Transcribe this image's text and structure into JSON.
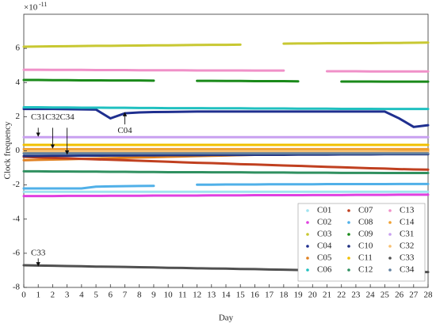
{
  "chart_data": {
    "type": "line",
    "x_label": "Day",
    "y_label": "Clock frequency",
    "y_multiplier": {
      "base": "×10",
      "exponent": "-11"
    },
    "xlim": [
      0,
      28
    ],
    "xticks": [
      0,
      1,
      2,
      3,
      4,
      5,
      6,
      7,
      8,
      9,
      10,
      11,
      12,
      13,
      14,
      15,
      16,
      17,
      18,
      19,
      20,
      21,
      22,
      23,
      24,
      25,
      26,
      27,
      28
    ],
    "ylim": [
      -8,
      8
    ],
    "yticks": [
      -8,
      -6,
      -4,
      -2,
      0,
      2,
      4,
      6
    ],
    "legend": "lower right",
    "x": [
      0,
      1,
      2,
      3,
      4,
      5,
      6,
      7,
      8,
      9,
      10,
      11,
      12,
      13,
      14,
      15,
      16,
      17,
      18,
      19,
      20,
      21,
      22,
      23,
      24,
      25,
      26,
      27,
      28
    ],
    "series": [
      {
        "name": "C01",
        "color": "#9fe3f0",
        "values": [
          -2.4,
          -2.4,
          -2.4,
          -2.4,
          -2.4,
          -2.4,
          -2.4,
          -2.4,
          -2.4,
          -2.4,
          -2.4,
          -2.4,
          -2.4,
          -2.4,
          -2.4,
          -2.4,
          -2.4,
          -2.4,
          -2.4,
          -2.4,
          -2.4,
          -2.4,
          -2.4,
          -2.4,
          -2.4,
          -2.4,
          -2.4,
          -2.4,
          -2.4
        ]
      },
      {
        "name": "C02",
        "color": "#e040e0",
        "values": [
          -2.65,
          -2.65,
          -2.65,
          -2.64,
          -2.64,
          -2.64,
          -2.63,
          -2.63,
          -2.63,
          -2.62,
          -2.62,
          -2.62,
          -2.62,
          -2.61,
          -2.61,
          -2.61,
          -2.6,
          -2.6,
          -2.6,
          -2.6,
          -2.59,
          -2.59,
          -2.59,
          -2.58,
          -2.58,
          -2.58,
          -2.57,
          -2.57,
          -2.57
        ]
      },
      {
        "name": "C03",
        "color": "#c8c832",
        "values": [
          6.1,
          6.11,
          6.12,
          6.13,
          6.14,
          6.15,
          6.15,
          6.16,
          6.17,
          6.18,
          6.18,
          6.19,
          6.2,
          6.21,
          6.21,
          6.22,
          null,
          null,
          6.28,
          6.29,
          6.29,
          6.3,
          6.3,
          6.31,
          6.31,
          6.32,
          6.32,
          6.33,
          6.34
        ]
      },
      {
        "name": "C04",
        "color": "#1f2f8f",
        "values": [
          2.45,
          2.45,
          2.45,
          2.44,
          2.43,
          2.42,
          1.9,
          2.2,
          2.25,
          2.27,
          2.28,
          2.29,
          2.3,
          2.3,
          2.3,
          2.3,
          2.3,
          2.3,
          2.3,
          2.3,
          2.3,
          2.3,
          2.3,
          2.3,
          2.3,
          2.3,
          1.9,
          1.4,
          1.5
        ]
      },
      {
        "name": "C05",
        "color": "#e08020",
        "values": [
          -0.55,
          -0.53,
          -0.51,
          -0.49,
          -0.47,
          -0.45,
          -0.43,
          -0.41,
          -0.39,
          -0.37,
          -0.35,
          -0.33,
          -0.31,
          -0.29,
          -0.27,
          -0.25,
          -0.23,
          -0.21,
          -0.19,
          -0.17,
          -0.15,
          -0.13,
          -0.11,
          -0.09,
          -0.07,
          -0.05,
          -0.03,
          -0.01,
          0.0
        ]
      },
      {
        "name": "C06",
        "color": "#20c0c0",
        "values": [
          2.55,
          2.55,
          2.54,
          2.54,
          2.53,
          2.53,
          2.52,
          2.52,
          2.51,
          2.51,
          2.5,
          2.5,
          2.5,
          2.49,
          2.49,
          2.49,
          2.48,
          2.48,
          2.48,
          2.47,
          2.47,
          2.47,
          2.46,
          2.46,
          2.46,
          2.45,
          2.45,
          2.45,
          2.45
        ]
      },
      {
        "name": "C07",
        "color": "#c04020",
        "values": [
          -0.35,
          -0.38,
          -0.41,
          -0.44,
          -0.47,
          -0.5,
          -0.52,
          -0.55,
          -0.58,
          -0.61,
          -0.64,
          -0.67,
          -0.7,
          -0.72,
          -0.75,
          -0.78,
          -0.8,
          -0.83,
          -0.86,
          -0.88,
          -0.91,
          -0.94,
          -0.96,
          -0.99,
          -1.02,
          -1.04,
          -1.07,
          -1.09,
          -1.1
        ]
      },
      {
        "name": "C08",
        "color": "#50b0e8",
        "values": [
          -2.2,
          -2.2,
          -2.2,
          -2.2,
          -2.2,
          -2.1,
          -2.08,
          -2.07,
          -2.06,
          -2.05,
          null,
          null,
          -1.98,
          -1.98,
          -1.97,
          -1.97,
          -1.97,
          -1.96,
          -1.96,
          -1.96,
          -1.96,
          -1.95,
          -1.95,
          -1.95,
          -1.95,
          -1.95,
          -1.94,
          -1.94,
          -1.94
        ]
      },
      {
        "name": "C09",
        "color": "#1a8a1a",
        "values": [
          4.15,
          4.15,
          4.14,
          4.14,
          4.13,
          4.13,
          4.12,
          4.12,
          4.12,
          4.11,
          null,
          null,
          4.1,
          4.1,
          4.09,
          4.09,
          4.08,
          4.08,
          4.08,
          4.07,
          null,
          null,
          4.06,
          4.06,
          4.06,
          4.05,
          4.05,
          4.05,
          4.05
        ]
      },
      {
        "name": "C10",
        "color": "#203080",
        "values": [
          -0.3,
          -0.3,
          -0.29,
          -0.29,
          -0.28,
          -0.28,
          -0.27,
          -0.27,
          -0.26,
          -0.26,
          -0.25,
          -0.25,
          -0.25,
          -0.24,
          -0.24,
          -0.24,
          -0.23,
          -0.23,
          -0.23,
          -0.22,
          -0.22,
          -0.22,
          -0.21,
          -0.21,
          -0.21,
          -0.2,
          -0.2,
          -0.2,
          -0.2
        ]
      },
      {
        "name": "C11",
        "color": "#f0c000",
        "values": [
          0.35,
          0.35,
          0.35,
          0.35,
          0.35,
          0.35,
          0.35,
          0.35,
          0.35,
          0.35,
          0.35,
          0.35,
          0.35,
          0.35,
          0.35,
          0.35,
          0.35,
          0.35,
          0.35,
          0.35,
          0.35,
          0.35,
          0.35,
          0.35,
          0.35,
          0.35,
          0.35,
          0.35,
          0.35
        ]
      },
      {
        "name": "C12",
        "color": "#309060",
        "values": [
          -1.2,
          -1.2,
          -1.21,
          -1.21,
          -1.22,
          -1.22,
          -1.23,
          -1.23,
          -1.24,
          -1.24,
          -1.25,
          -1.25,
          -1.25,
          -1.26,
          -1.26,
          -1.26,
          -1.27,
          -1.27,
          -1.27,
          -1.28,
          -1.28,
          -1.28,
          -1.29,
          -1.29,
          -1.29,
          -1.3,
          -1.3,
          -1.3,
          -1.3
        ]
      },
      {
        "name": "C13",
        "color": "#f090c8",
        "values": [
          4.75,
          4.75,
          4.74,
          4.74,
          4.74,
          4.73,
          4.73,
          4.73,
          4.72,
          4.72,
          4.72,
          4.72,
          4.71,
          4.71,
          4.71,
          4.71,
          4.7,
          4.7,
          4.7,
          null,
          null,
          4.66,
          4.66,
          4.66,
          4.65,
          4.65,
          4.65,
          4.65,
          4.65
        ]
      },
      {
        "name": "C14",
        "color": "#f0a030",
        "values": [
          0.1,
          0.1,
          0.1,
          0.1,
          0.1,
          0.1,
          0.1,
          0.1,
          0.1,
          0.1,
          0.1,
          0.1,
          0.1,
          0.1,
          0.1,
          0.1,
          0.1,
          0.1,
          0.1,
          0.1,
          0.1,
          0.1,
          0.1,
          0.1,
          0.1,
          0.1,
          0.1,
          0.1,
          0.1
        ]
      },
      {
        "name": "C31",
        "color": "#c8a0f0",
        "values": [
          0.8,
          0.8,
          0.8,
          0.8,
          0.8,
          0.8,
          0.8,
          0.8,
          0.8,
          0.8,
          0.8,
          0.8,
          0.8,
          0.8,
          0.8,
          0.8,
          0.8,
          0.8,
          0.8,
          0.8,
          0.8,
          0.8,
          0.8,
          0.8,
          0.8,
          0.8,
          0.8,
          0.8,
          0.8
        ]
      },
      {
        "name": "C32",
        "color": "#f8c070",
        "values": [
          -0.05,
          -0.05,
          -0.05,
          -0.05,
          -0.05,
          -0.05,
          -0.05,
          -0.05,
          -0.05,
          -0.05,
          -0.05,
          -0.05,
          -0.05,
          -0.05,
          -0.05,
          -0.05,
          -0.05,
          -0.05,
          -0.05,
          -0.05,
          -0.05,
          -0.05,
          -0.05,
          -0.05,
          -0.05,
          -0.05,
          -0.05,
          -0.05,
          -0.05
        ]
      },
      {
        "name": "C33",
        "color": "#505050",
        "values": [
          -6.7,
          -6.72,
          -6.73,
          -6.75,
          -6.76,
          -6.78,
          -6.79,
          -6.8,
          -6.82,
          -6.83,
          -6.85,
          -6.86,
          -6.88,
          -6.89,
          -6.9,
          -6.92,
          -6.93,
          -6.95,
          -6.96,
          -6.98,
          -6.99,
          -7.0,
          -7.02,
          -7.03,
          -7.05,
          -7.06,
          -7.08,
          -7.09,
          -7.1
        ]
      },
      {
        "name": "C34",
        "color": "#6080a0",
        "values": [
          -0.15,
          -0.15,
          -0.15,
          -0.15,
          -0.15,
          -0.15,
          -0.15,
          -0.15,
          -0.15,
          -0.15,
          -0.15,
          -0.15,
          -0.15,
          -0.15,
          -0.15,
          -0.15,
          -0.15,
          -0.15,
          -0.15,
          -0.15,
          -0.15,
          -0.15,
          -0.15,
          -0.15,
          -0.15,
          -0.15,
          -0.15,
          -0.15,
          -0.15
        ]
      }
    ],
    "annotations": [
      "C31",
      "C32",
      "C34",
      "C04",
      "C33"
    ]
  }
}
